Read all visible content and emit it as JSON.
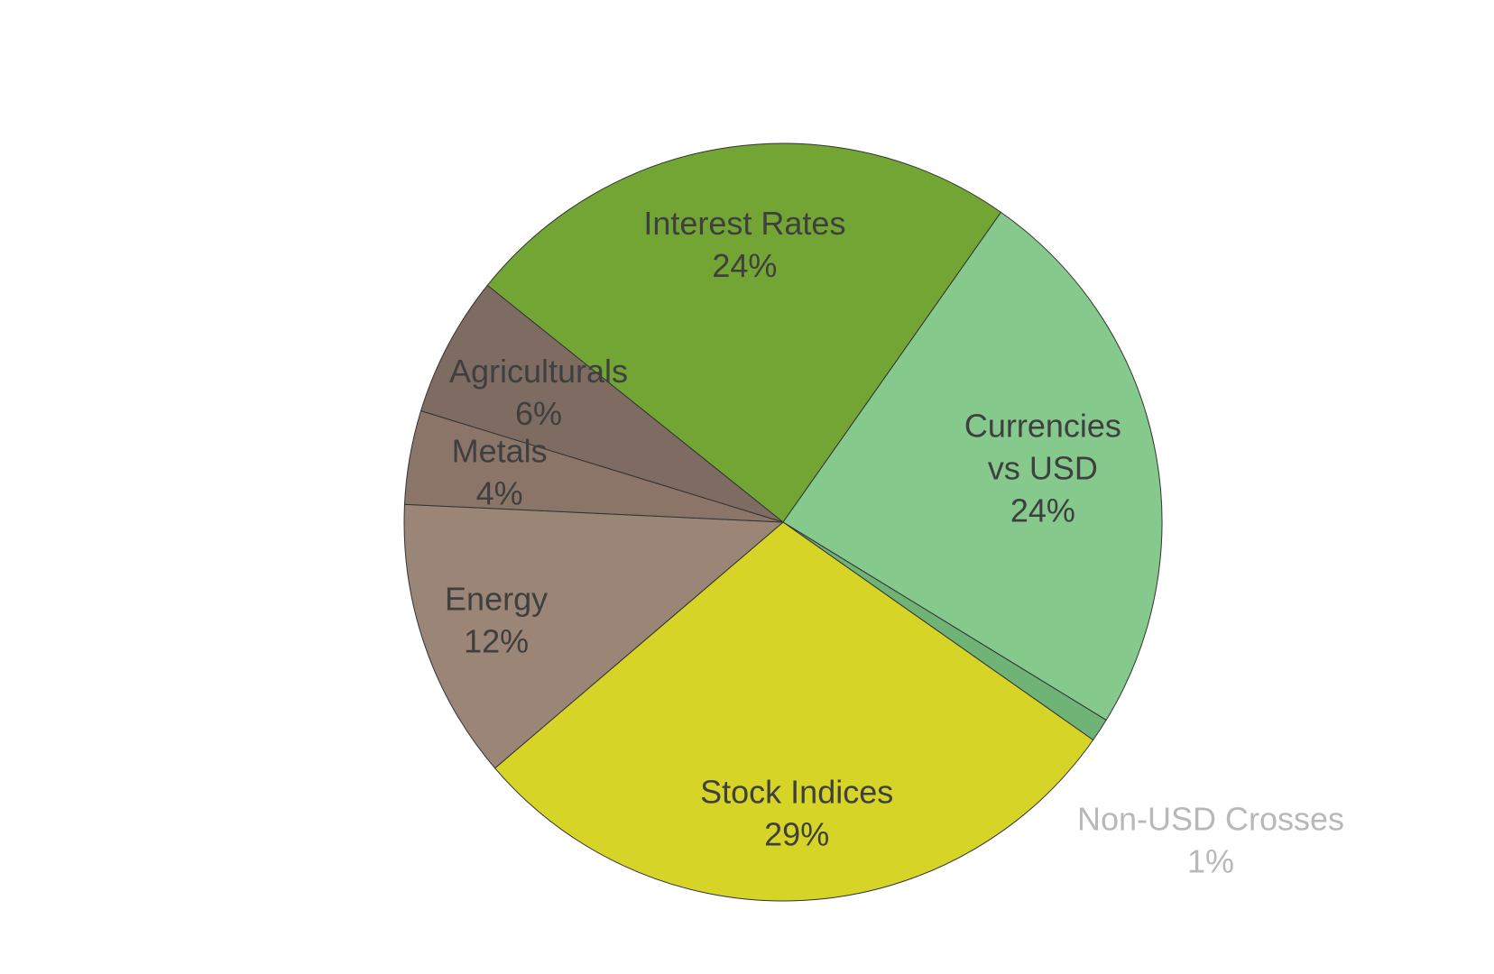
{
  "chart_data": {
    "type": "pie",
    "title": "",
    "start_angle_deg": -141.3,
    "slices": [
      {
        "name": "Interest Rates",
        "value": 24,
        "label": "24%",
        "color": "#72a533",
        "text_color": "#3f3f3f",
        "label_pos": "inside"
      },
      {
        "name": "Currencies vs USD",
        "name_lines": [
          "Currencies",
          "vs USD"
        ],
        "value": 24,
        "label": "24%",
        "color": "#86c98c",
        "text_color": "#3f3f3f",
        "label_pos": "inside"
      },
      {
        "name": "Non-USD Crosses",
        "value": 1,
        "label": "1%",
        "color": "#6fb376",
        "text_color": "#b8b8b8",
        "label_pos": "outside"
      },
      {
        "name": "Stock Indices",
        "value": 29,
        "label": "29%",
        "color": "#d6d426",
        "text_color": "#3f3f3f",
        "label_pos": "inside"
      },
      {
        "name": "Energy",
        "value": 12,
        "label": "12%",
        "color": "#9a8576",
        "text_color": "#3f3f3f",
        "label_pos": "inside"
      },
      {
        "name": "Metals",
        "value": 4,
        "label": "4%",
        "color": "#8b7568",
        "text_color": "#3f3f3f",
        "label_pos": "inside"
      },
      {
        "name": "Agriculturals",
        "value": 6,
        "label": "6%",
        "color": "#7e6c62",
        "text_color": "#3f3f3f",
        "label_pos": "inside"
      }
    ]
  }
}
